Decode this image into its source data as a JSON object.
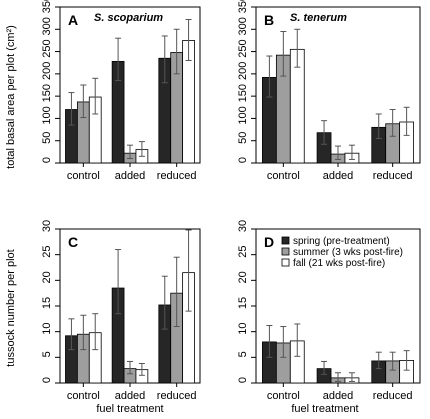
{
  "colors": {
    "spring": "#262626",
    "summer": "#9e9e9e",
    "fall": "#ffffff",
    "error_bar": "#555555"
  },
  "legend": {
    "placement": "top-left",
    "entries": [
      "spring (pre-treatment)",
      "summer (3 wks post-fire)",
      "fall (21 wks post-fire)"
    ]
  },
  "axis_titles": {
    "top_ylabel": "total basal area per plot (cm²)",
    "bottom_ylabel": "tussock number per plot",
    "xlabel_left": "fuel treatment",
    "xlabel_right": "fuel treatment"
  },
  "chart_data": [
    {
      "panel": "A",
      "type": "bar",
      "title": "S. scoparium",
      "categories": [
        "control",
        "added",
        "reduced"
      ],
      "ylim": [
        0,
        350
      ],
      "yticks": [
        0,
        50,
        100,
        150,
        200,
        250,
        300,
        350
      ],
      "series": [
        {
          "name": "spring (pre-treatment)",
          "values": [
            120,
            228,
            235
          ],
          "err_low": [
            85,
            185,
            180
          ],
          "err_high": [
            158,
            280,
            285
          ]
        },
        {
          "name": "summer (3 wks post-fire)",
          "values": [
            137,
            22,
            248
          ],
          "err_low": [
            102,
            10,
            200
          ],
          "err_high": [
            175,
            40,
            300
          ]
        },
        {
          "name": "fall (21 wks post-fire)",
          "values": [
            148,
            30,
            275
          ],
          "err_low": [
            110,
            15,
            230
          ],
          "err_high": [
            190,
            48,
            322
          ]
        }
      ]
    },
    {
      "panel": "B",
      "type": "bar",
      "title": "S. tenerum",
      "categories": [
        "control",
        "added",
        "reduced"
      ],
      "ylim": [
        0,
        350
      ],
      "yticks": [
        0,
        50,
        100,
        150,
        200,
        250,
        300,
        350
      ],
      "series": [
        {
          "name": "spring (pre-treatment)",
          "values": [
            192,
            68,
            80
          ],
          "err_low": [
            148,
            42,
            55
          ],
          "err_high": [
            240,
            95,
            110
          ]
        },
        {
          "name": "summer (3 wks post-fire)",
          "values": [
            242,
            20,
            88
          ],
          "err_low": [
            195,
            8,
            60
          ],
          "err_high": [
            295,
            38,
            120
          ]
        },
        {
          "name": "fall (21 wks post-fire)",
          "values": [
            255,
            22,
            92
          ],
          "err_low": [
            215,
            8,
            62
          ],
          "err_high": [
            300,
            40,
            125
          ]
        }
      ]
    },
    {
      "panel": "C",
      "type": "bar",
      "title": "",
      "categories": [
        "control",
        "added",
        "reduced"
      ],
      "ylim": [
        0,
        30
      ],
      "yticks": [
        0,
        5,
        10,
        15,
        20,
        25,
        30
      ],
      "series": [
        {
          "name": "spring (pre-treatment)",
          "values": [
            9.2,
            18.5,
            15.2
          ],
          "err_low": [
            6.5,
            13.5,
            10.5
          ],
          "err_high": [
            12.5,
            26.0,
            20.8
          ]
        },
        {
          "name": "summer (3 wks post-fire)",
          "values": [
            9.5,
            2.8,
            17.5
          ],
          "err_low": [
            6.5,
            1.8,
            11.0
          ],
          "err_high": [
            13.2,
            4.2,
            24.5
          ]
        },
        {
          "name": "fall (21 wks post-fire)",
          "values": [
            9.8,
            2.6,
            21.5
          ],
          "err_low": [
            6.5,
            1.5,
            14.0
          ],
          "err_high": [
            13.5,
            3.8,
            29.8
          ]
        }
      ]
    },
    {
      "panel": "D",
      "type": "bar",
      "title": "",
      "categories": [
        "control",
        "added",
        "reduced"
      ],
      "ylim": [
        0,
        30
      ],
      "yticks": [
        0,
        5,
        10,
        15,
        20,
        25,
        30
      ],
      "series": [
        {
          "name": "spring (pre-treatment)",
          "values": [
            8.0,
            2.8,
            4.3
          ],
          "err_low": [
            5.0,
            1.7,
            2.8
          ],
          "err_high": [
            11.2,
            4.2,
            6.0
          ]
        },
        {
          "name": "summer (3 wks post-fire)",
          "values": [
            7.8,
            1.0,
            4.3
          ],
          "err_low": [
            5.0,
            0.3,
            2.5
          ],
          "err_high": [
            11.0,
            2.0,
            6.0
          ]
        },
        {
          "name": "fall (21 wks post-fire)",
          "values": [
            8.2,
            1.0,
            4.4
          ],
          "err_low": [
            5.2,
            0.3,
            2.5
          ],
          "err_high": [
            11.5,
            2.0,
            6.3
          ]
        }
      ]
    }
  ]
}
